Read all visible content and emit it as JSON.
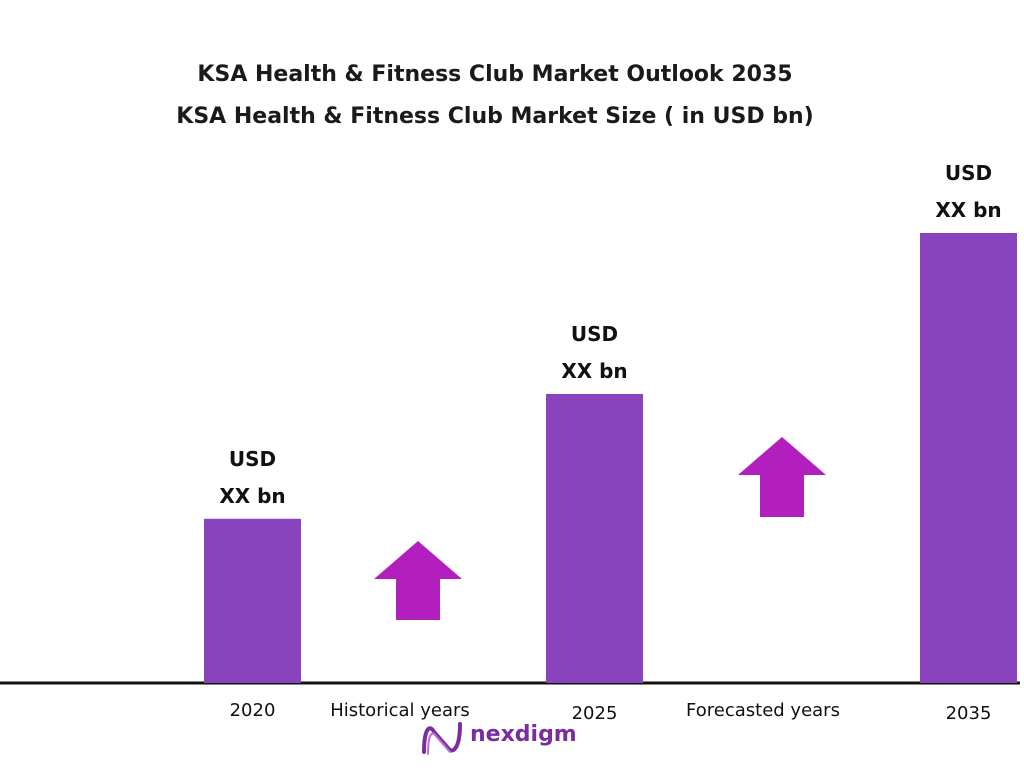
{
  "chart_data": {
    "type": "bar",
    "title": "KSA Health & Fitness Club Market Outlook 2035",
    "subtitle": "KSA Health & Fitness Club Market Size  ( in USD bn)",
    "categories": [
      "2020",
      "2025",
      "2035"
    ],
    "values": [
      1.0,
      1.76,
      2.74
    ],
    "value_labels": [
      [
        "USD",
        "XX bn"
      ],
      [
        "USD",
        "XX bn"
      ],
      [
        "USD",
        "XX bn"
      ]
    ],
    "annotations": [
      "Historical years",
      "Forecasted years"
    ],
    "ylim": [
      0,
      2.74
    ],
    "grid": false,
    "bar_color": "#8944bd",
    "arrow_color": "#b31fbf",
    "axis_color": "#111111"
  },
  "logo": {
    "text": "nexdigm",
    "color": "#7a2d9c"
  }
}
